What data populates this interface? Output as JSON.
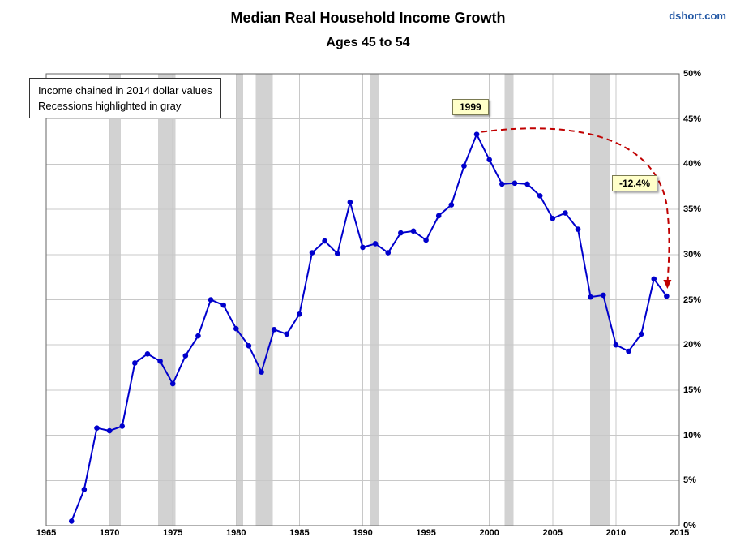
{
  "header": {
    "title": "Median Real Household Income Growth",
    "subtitle": "Ages 45 to 54",
    "watermark": "dshort.com"
  },
  "legend": {
    "line1": "Income chained in 2014 dollar values",
    "line2": "Recessions highlighted in gray"
  },
  "annotations": {
    "peak_label": "1999",
    "decline_label": "-12.4%"
  },
  "chart_data": {
    "type": "line",
    "title": "Median Real Household Income Growth",
    "subtitle": "Ages 45 to 54",
    "xlabel": "",
    "ylabel": "",
    "xlim": [
      1965,
      2015
    ],
    "ylim": [
      0,
      50
    ],
    "grid": true,
    "legend_position": "top-left",
    "x_ticks": [
      1965,
      1970,
      1975,
      1980,
      1985,
      1990,
      1995,
      2000,
      2005,
      2010,
      2015
    ],
    "x_tick_labels": [
      "1965",
      "1970",
      "1975",
      "1980",
      "1985",
      "1990",
      "1995",
      "2000",
      "2005",
      "2010",
      "2015"
    ],
    "y_ticks": [
      0,
      5,
      10,
      15,
      20,
      25,
      30,
      35,
      40,
      45,
      50
    ],
    "y_tick_labels": [
      "0%",
      "5%",
      "10%",
      "15%",
      "20%",
      "25%",
      "30%",
      "35%",
      "40%",
      "45%",
      "50%"
    ],
    "x": [
      1967,
      1968,
      1969,
      1970,
      1971,
      1972,
      1973,
      1974,
      1975,
      1976,
      1977,
      1978,
      1979,
      1980,
      1981,
      1982,
      1983,
      1984,
      1985,
      1986,
      1987,
      1988,
      1989,
      1990,
      1991,
      1992,
      1993,
      1994,
      1995,
      1996,
      1997,
      1998,
      1999,
      2000,
      2001,
      2002,
      2003,
      2004,
      2005,
      2006,
      2007,
      2008,
      2009,
      2010,
      2011,
      2012,
      2013,
      2014
    ],
    "values": [
      0.5,
      4.0,
      10.8,
      10.5,
      11.0,
      18.0,
      19.0,
      18.2,
      15.7,
      18.8,
      21.0,
      25.0,
      24.4,
      21.8,
      19.9,
      17.0,
      21.7,
      21.2,
      23.4,
      30.2,
      31.5,
      30.1,
      35.8,
      30.8,
      31.2,
      30.2,
      32.4,
      32.6,
      31.6,
      34.3,
      35.5,
      39.8,
      43.3,
      40.5,
      37.8,
      37.9,
      37.8,
      36.5,
      34.0,
      34.6,
      32.8,
      25.3,
      25.5,
      20.0,
      19.3,
      21.2,
      27.3,
      25.4
    ],
    "peak_year": 1999,
    "peak_value": 43.3,
    "decline_from_peak_pct": -12.4,
    "recession_bands": [
      [
        1969.95,
        1970.9
      ],
      [
        1973.85,
        1975.2
      ],
      [
        1980.0,
        1980.55
      ],
      [
        1981.55,
        1982.9
      ],
      [
        1990.55,
        1991.25
      ],
      [
        2001.2,
        2001.9
      ],
      [
        2007.95,
        2009.5
      ]
    ],
    "colors": {
      "line": "#0000CC",
      "gridline": "#C8C8C8",
      "recession_band": "#D2D2D2",
      "plot_border": "#666666",
      "arrow": "#C00000",
      "callout_bg": "#FFFFC9",
      "watermark": "#2257A4"
    }
  }
}
